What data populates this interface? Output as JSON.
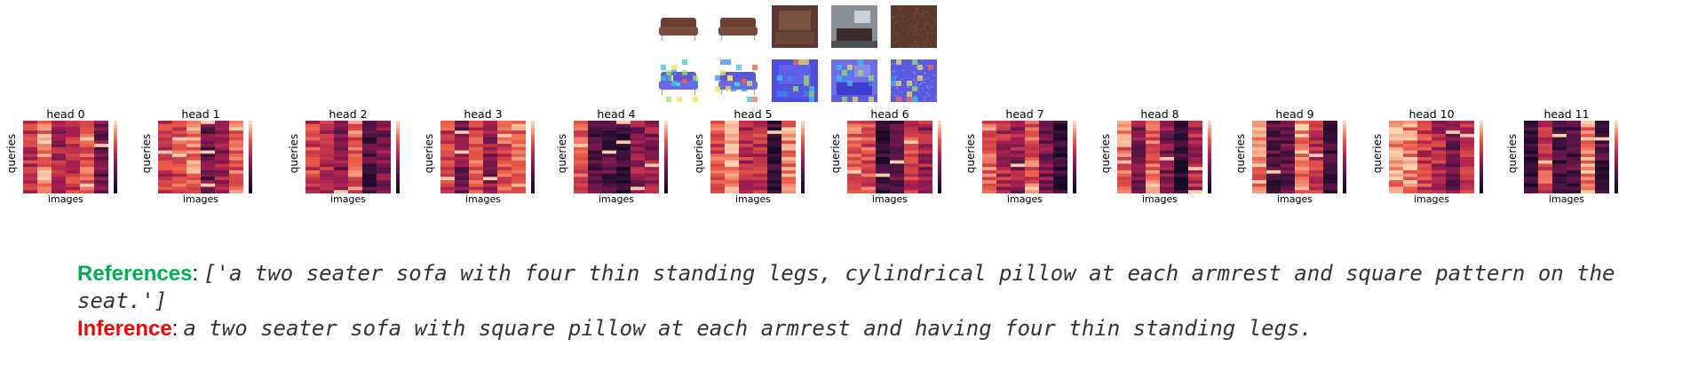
{
  "colors": {
    "references_label": "#00b050",
    "inference_label": "#ff0000",
    "heatmap_dark": "#1a0a2e",
    "heatmap_mid": "#b3245c",
    "heatmap_light": "#f7b58a"
  },
  "figure": {
    "thumbnails": [
      {
        "kind": "sofa-render-front",
        "label": ""
      },
      {
        "kind": "sofa-render-side",
        "label": ""
      },
      {
        "kind": "sofa-closeup",
        "label": ""
      },
      {
        "kind": "living-room-scene",
        "label": ""
      },
      {
        "kind": "leather-texture",
        "label": ""
      }
    ],
    "attention_overlays": [
      {
        "kind": "sofa-render-front-attention"
      },
      {
        "kind": "sofa-render-side-attention"
      },
      {
        "kind": "sofa-closeup-attention"
      },
      {
        "kind": "living-room-scene-attention"
      },
      {
        "kind": "leather-texture-attention"
      }
    ],
    "heads": [
      {
        "title": "head 0",
        "xlabel": "images",
        "ylabel": "queries"
      },
      {
        "title": "head 1",
        "xlabel": "images",
        "ylabel": "queries"
      },
      {
        "title": "head 2",
        "xlabel": "images",
        "ylabel": "queries"
      },
      {
        "title": "head 3",
        "xlabel": "images",
        "ylabel": "queries"
      },
      {
        "title": "head 4",
        "xlabel": "images",
        "ylabel": "queries"
      },
      {
        "title": "head 5",
        "xlabel": "images",
        "ylabel": "queries"
      },
      {
        "title": "head 6",
        "xlabel": "images",
        "ylabel": "queries"
      },
      {
        "title": "head 7",
        "xlabel": "images",
        "ylabel": "queries"
      },
      {
        "title": "head 8",
        "xlabel": "images",
        "ylabel": "queries"
      },
      {
        "title": "head 9",
        "xlabel": "images",
        "ylabel": "queries"
      },
      {
        "title": "head 10",
        "xlabel": "images",
        "ylabel": "queries"
      },
      {
        "title": "head 11",
        "xlabel": "images",
        "ylabel": "queries"
      }
    ]
  },
  "caption": {
    "references_label": "References",
    "references_text": "['a two seater sofa with four thin standing legs, cylindrical pillow at each armrest and square pattern on the seat.']",
    "inference_label": "Inference",
    "inference_text": "a two seater sofa with square pillow at each armrest and having four thin standing legs."
  }
}
